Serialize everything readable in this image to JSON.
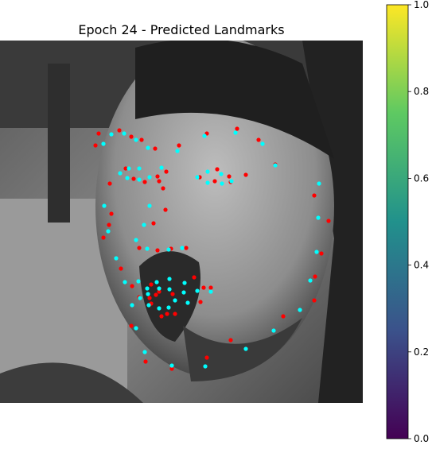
{
  "chart_data": {
    "type": "scatter",
    "title": "Epoch 24 - Predicted Landmarks",
    "xlim": [
      0,
      456
    ],
    "ylim": [
      456,
      0
    ],
    "series": [
      {
        "color": "#ff0000",
        "x": [
          130,
          137,
          140,
          138,
          152,
          165,
          183,
          216,
          260,
          290,
          356,
          395,
          396,
          404,
          413,
          395,
          120,
          124,
          150,
          165,
          178,
          195,
          225,
          260,
          298,
          325,
          346,
          200,
          205,
          208,
          193,
          175,
          198,
          215,
          234,
          158,
          168,
          182,
          209,
          198,
          251,
          273,
          288,
          290,
          309,
          270,
          166,
          175,
          190,
          200,
          217,
          244,
          256,
          265,
          252,
          220,
          210,
          203,
          190,
          196,
          188
        ],
        "y": [
          248,
          232,
          218,
          180,
          287,
          359,
          404,
          413,
          399,
          377,
          347,
          327,
          297,
          268,
          227,
          195,
          132,
          117,
          113,
          121,
          125,
          136,
          132,
          117,
          111,
          125,
          156,
          177,
          186,
          213,
          230,
          261,
          264,
          262,
          261,
          161,
          174,
          178,
          165,
          171,
          172,
          162,
          171,
          178,
          169,
          177,
          309,
          323,
          307,
          316,
          319,
          298,
          311,
          311,
          329,
          344,
          344,
          347,
          331,
          320,
          324
        ]
      },
      {
        "color": "#00ffff",
        "x": [
          131,
          136,
          146,
          157,
          171,
          182,
          216,
          258,
          309,
          344,
          377,
          390,
          398,
          400,
          401,
          130,
          140,
          156,
          171,
          186,
          223,
          257,
          296,
          330,
          346,
          151,
          162,
          175,
          188,
          175,
          160,
          248,
          261,
          278,
          291,
          279,
          261,
          203,
          188,
          181,
          171,
          185,
          212,
          229,
          166,
          176,
          174,
          185,
          197,
          213,
          232,
          248,
          265,
          236,
          220,
          212,
          200,
          187,
          186,
          200,
          213,
          231
        ],
        "y": [
          208,
          240,
          274,
          304,
          362,
          392,
          409,
          410,
          388,
          365,
          339,
          302,
          266,
          223,
          180,
          130,
          118,
          117,
          125,
          135,
          139,
          120,
          116,
          130,
          157,
          167,
          161,
          161,
          172,
          175,
          173,
          172,
          165,
          168,
          177,
          180,
          179,
          160,
          208,
          232,
          251,
          262,
          263,
          261,
          333,
          324,
          303,
          312,
          304,
          300,
          305,
          315,
          316,
          330,
          327,
          336,
          337,
          333,
          319,
          312,
          313,
          317
        ]
      }
    ],
    "colorbar": {
      "colormap": "viridis",
      "lim": [
        0,
        1
      ],
      "ticks": [
        {
          "value": 0,
          "label": "0.0"
        },
        {
          "value": 0.2,
          "label": "0.2"
        },
        {
          "value": 0.4,
          "label": "0.4"
        },
        {
          "value": 0.6,
          "label": "0.6"
        },
        {
          "value": 0.8,
          "label": "0.8"
        },
        {
          "value": 1,
          "label": "1.0"
        }
      ]
    }
  }
}
